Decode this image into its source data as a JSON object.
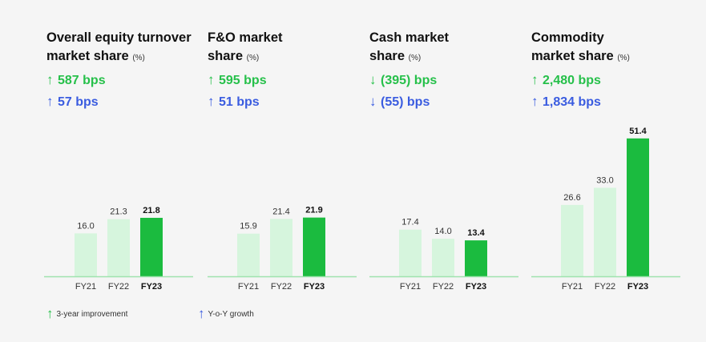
{
  "colors": {
    "green": "#26c04a",
    "blue": "#3a5ce0",
    "bar_light": "#d6f5dd",
    "bar_dark": "#1bbb3f",
    "baseline": "#9fe3ae"
  },
  "legend": {
    "improvement_label": "3-year improvement",
    "growth_label": "Y-o-Y growth"
  },
  "panels": [
    {
      "title_line1": "Overall equity turnover",
      "title_line2": "market share",
      "unit": "(%)",
      "metric_3yr": "587 bps",
      "metric_3yr_dir": "up",
      "metric_yoy": "57 bps",
      "metric_yoy_dir": "up"
    },
    {
      "title_line1": "F&O market",
      "title_line2": "share",
      "unit": "(%)",
      "metric_3yr": "595 bps",
      "metric_3yr_dir": "up",
      "metric_yoy": "51 bps",
      "metric_yoy_dir": "up"
    },
    {
      "title_line1": "Cash market",
      "title_line2": "share",
      "unit": "(%)",
      "metric_3yr": "(395) bps",
      "metric_3yr_dir": "down",
      "metric_yoy": "(55) bps",
      "metric_yoy_dir": "down"
    },
    {
      "title_line1": "Commodity",
      "title_line2": "market share",
      "unit": "(%)",
      "metric_3yr": "2,480 bps",
      "metric_3yr_dir": "up",
      "metric_yoy": "1,834 bps",
      "metric_yoy_dir": "up"
    }
  ],
  "chart_data": [
    {
      "type": "bar",
      "title": "Overall equity turnover market share (%)",
      "categories": [
        "FY21",
        "FY22",
        "FY23"
      ],
      "values": [
        16.0,
        21.3,
        21.8
      ],
      "value_labels": [
        "16.0",
        "21.3",
        "21.8"
      ],
      "highlight_index": 2
    },
    {
      "type": "bar",
      "title": "F&O market share (%)",
      "categories": [
        "FY21",
        "FY22",
        "FY23"
      ],
      "values": [
        15.9,
        21.4,
        21.9
      ],
      "value_labels": [
        "15.9",
        "21.4",
        "21.9"
      ],
      "highlight_index": 2
    },
    {
      "type": "bar",
      "title": "Cash market share (%)",
      "categories": [
        "FY21",
        "FY22",
        "FY23"
      ],
      "values": [
        17.4,
        14.0,
        13.4
      ],
      "value_labels": [
        "17.4",
        "14.0",
        "13.4"
      ],
      "highlight_index": 2
    },
    {
      "type": "bar",
      "title": "Commodity market share (%)",
      "categories": [
        "FY21",
        "FY22",
        "FY23"
      ],
      "values": [
        26.6,
        33.0,
        51.4
      ],
      "value_labels": [
        "26.6",
        "33.0",
        "51.4"
      ],
      "highlight_index": 2
    }
  ]
}
